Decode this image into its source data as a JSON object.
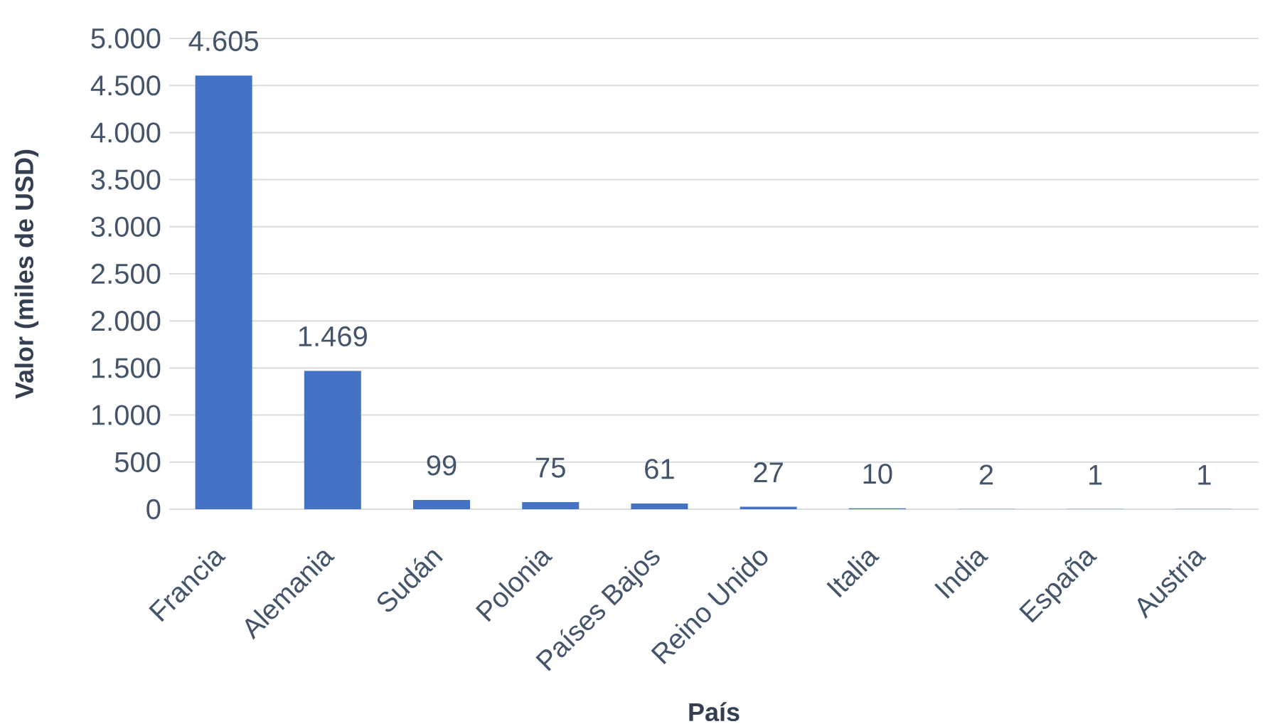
{
  "chart_data": {
    "type": "bar",
    "xlabel": "País",
    "ylabel": "Valor (miles de USD)",
    "categories": [
      "Francia",
      "Alemania",
      "Sudán",
      "Polonia",
      "Países Bajos",
      "Reino Unido",
      "Italia",
      "India",
      "España",
      "Austria"
    ],
    "values": [
      4605,
      1469,
      99,
      75,
      61,
      27,
      10,
      2,
      1,
      1
    ],
    "value_labels": [
      "4.605",
      "1.469",
      "99",
      "75",
      "61",
      "27",
      "10",
      "2",
      "1",
      "1"
    ],
    "color": "#4472c4",
    "ylim": [
      0,
      5000
    ],
    "yticks": [
      0,
      500,
      {
        "value": 1000,
        "label": "1.000"
      },
      {
        "value": 1500,
        "label": "1.500"
      },
      {
        "value": 2000,
        "label": "2.000"
      },
      {
        "value": 2500,
        "label": "2.500"
      },
      {
        "value": 3000,
        "label": "3.000"
      },
      {
        "value": 3500,
        "label": "3.500"
      },
      {
        "value": 4000,
        "label": "4.000"
      },
      {
        "value": 4500,
        "label": "4.500"
      },
      {
        "value": 5000,
        "label": "5.000"
      }
    ],
    "grid": "y"
  }
}
